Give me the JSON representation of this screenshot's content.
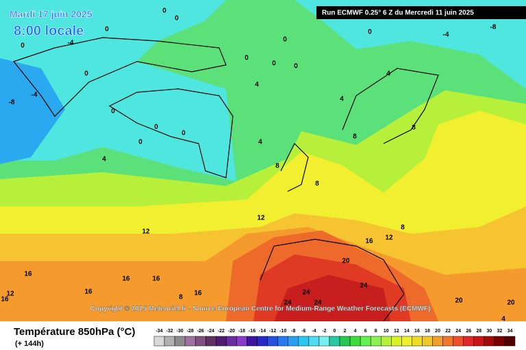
{
  "header": {
    "date": "Mardi 17 juin 2025",
    "time": "8:00 locale",
    "run": "Run ECMWF 0.25° 6 Z du Mercredi 11 juin 2025"
  },
  "map": {
    "copyright": "Copyright © 2025 Meteociel.fr - Source European Centre for Medium-Range Weather Forecasts (ECMWF)",
    "contour_labels": [
      0,
      0,
      0,
      -4,
      0,
      0,
      -4,
      -8,
      0,
      0,
      0,
      0,
      4,
      4,
      4,
      0,
      0,
      0,
      0,
      0,
      -4,
      -8,
      4,
      4,
      8,
      8,
      8,
      8,
      8,
      12,
      12,
      12,
      16,
      20,
      24,
      24,
      24,
      24,
      16,
      16,
      16,
      16,
      16,
      12,
      8,
      16,
      20,
      20,
      4
    ]
  },
  "footer": {
    "title": "Température 850hPa (°C)",
    "lead": "(+ 144h)"
  },
  "legend": {
    "labels": [
      -34,
      -32,
      -30,
      -28,
      -26,
      -24,
      -22,
      -20,
      -18,
      -16,
      -14,
      -12,
      -10,
      -8,
      -6,
      -4,
      -2,
      0,
      2,
      4,
      6,
      8,
      10,
      12,
      14,
      16,
      18,
      20,
      22,
      24,
      26,
      28,
      30,
      32,
      34
    ],
    "colors": [
      "#d8d8d8",
      "#b0b0b0",
      "#8c8c8c",
      "#a070a0",
      "#805080",
      "#603060",
      "#501c70",
      "#6a2ca0",
      "#8a3cc8",
      "#3c14a0",
      "#2828c8",
      "#2850e0",
      "#2878f0",
      "#28a0f0",
      "#28c8f0",
      "#50dcf0",
      "#78f0f0",
      "#28c8a0",
      "#28c850",
      "#3cdc3c",
      "#64f050",
      "#8cf050",
      "#b4f03c",
      "#dcf028",
      "#f0f028",
      "#f0dc28",
      "#f0c828",
      "#f0a028",
      "#f07828",
      "#f05028",
      "#e02828",
      "#c81414",
      "#a00a0a",
      "#780000",
      "#500000"
    ]
  }
}
